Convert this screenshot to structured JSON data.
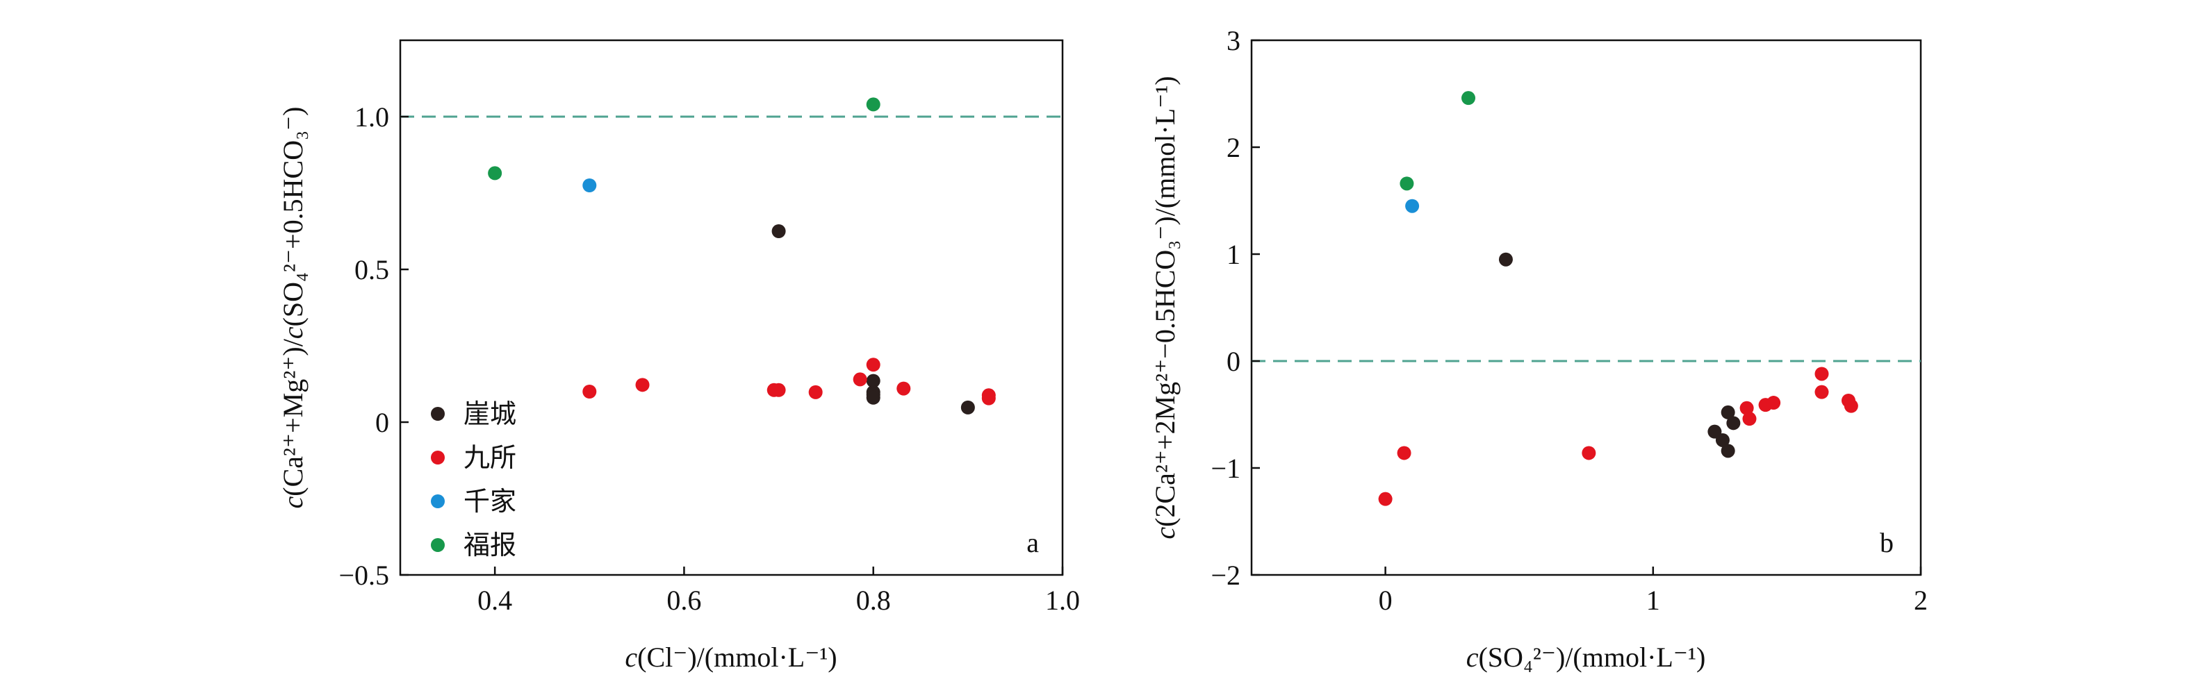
{
  "colors": {
    "崖城": "#2a1f1d",
    "九所": "#e3141f",
    "千家": "#1a8fd6",
    "福报": "#17984b",
    "reference_line": "#4fa391"
  },
  "chart_data": [
    {
      "type": "scatter",
      "panel_label": "a",
      "xlabel_var": "c",
      "xlabel_rest": "(Cl⁻)/(mmol·L⁻¹)",
      "ylabel_var": "c",
      "ylabel_rest": "(Ca²⁺+Mg²⁺)/",
      "ylabel_var2": "c",
      "ylabel_rest2": "(SO₄²⁻+0.5HCO₃⁻)",
      "xlim": [
        0.3,
        1.0
      ],
      "ylim": [
        -0.5,
        1.25
      ],
      "xticks": [
        0.4,
        0.6,
        0.8,
        1.0
      ],
      "xtick_labels": [
        "0.4",
        "0.6",
        "0.8",
        "1.0"
      ],
      "yticks": [
        -0.5,
        0,
        0.5,
        1.0
      ],
      "ytick_labels": [
        "−0.5",
        "0",
        "0.5",
        "1.0"
      ],
      "reference_y": 1.0,
      "legend_placement": "bottom-left",
      "series": [
        {
          "name": "崖城",
          "x": [
            0.7,
            0.8,
            0.8,
            0.8,
            0.8,
            0.9
          ],
          "y": [
            0.625,
            0.135,
            0.098,
            0.09,
            0.08,
            0.048
          ]
        },
        {
          "name": "九所",
          "x": [
            0.5,
            0.556,
            0.695,
            0.7,
            0.739,
            0.786,
            0.8,
            0.832,
            0.922,
            0.922
          ],
          "y": [
            0.1,
            0.122,
            0.105,
            0.105,
            0.098,
            0.14,
            0.188,
            0.11,
            0.088,
            0.078
          ]
        },
        {
          "name": "千家",
          "x": [
            0.5
          ],
          "y": [
            0.775
          ]
        },
        {
          "name": "福报",
          "x": [
            0.4,
            0.8
          ],
          "y": [
            0.815,
            1.04
          ]
        }
      ]
    },
    {
      "type": "scatter",
      "panel_label": "b",
      "xlabel_var": "c",
      "xlabel_rest": "(SO₄²⁻)/(mmol·L⁻¹)",
      "ylabel_var": "c",
      "ylabel_rest": "(2Ca²⁺+2Mg²⁺−0.5HCO₃⁻)/(mmol·L⁻¹)",
      "xlim": [
        -0.5,
        2.0
      ],
      "ylim": [
        -2,
        3
      ],
      "xticks": [
        0,
        1,
        2
      ],
      "xtick_labels": [
        "0",
        "1",
        "2"
      ],
      "yticks": [
        -2,
        -1,
        0,
        1,
        2,
        3
      ],
      "ytick_labels": [
        "−2",
        "−1",
        "0",
        "1",
        "2",
        "3"
      ],
      "reference_y": 0,
      "series": [
        {
          "name": "崖城",
          "x": [
            0.45,
            1.23,
            1.26,
            1.28,
            1.28,
            1.3
          ],
          "y": [
            0.95,
            -0.66,
            -0.74,
            -0.84,
            -0.48,
            -0.58
          ]
        },
        {
          "name": "九所",
          "x": [
            0.0,
            0.07,
            0.76,
            1.35,
            1.36,
            1.42,
            1.45,
            1.63,
            1.63,
            1.73,
            1.74
          ],
          "y": [
            -1.29,
            -0.86,
            -0.86,
            -0.44,
            -0.54,
            -0.41,
            -0.39,
            -0.12,
            -0.29,
            -0.37,
            -0.42
          ]
        },
        {
          "name": "千家",
          "x": [
            0.1
          ],
          "y": [
            1.45
          ]
        },
        {
          "name": "福报",
          "x": [
            0.08,
            0.31
          ],
          "y": [
            1.66,
            2.46
          ]
        }
      ]
    }
  ]
}
